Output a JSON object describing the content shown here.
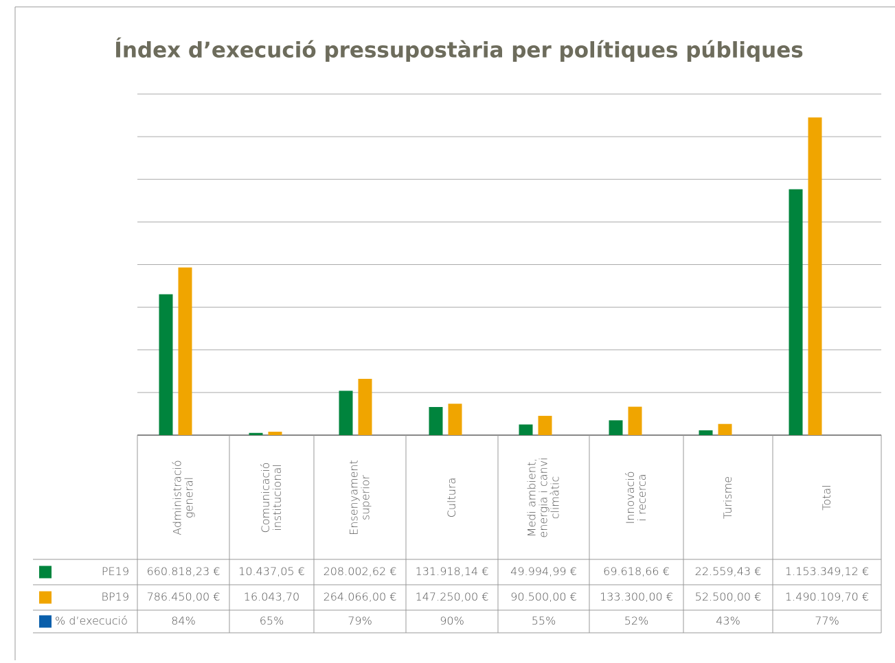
{
  "chart_data": {
    "type": "bar",
    "title": "Índex d’execució pressupostària per polítiques públiques",
    "categories": [
      [
        "Administració",
        "general"
      ],
      [
        "Comunicació",
        "institucional"
      ],
      [
        "Ensenyament",
        "superior"
      ],
      [
        "Cultura"
      ],
      [
        "Medi ambient,",
        "energia i canvi",
        "climàtic"
      ],
      [
        "Innovació",
        "i recerca"
      ],
      [
        "Turisme"
      ],
      [
        "Total"
      ]
    ],
    "series": [
      {
        "name": "PE19",
        "color": "#00843d",
        "values": [
          660818.23,
          10437.05,
          208002.62,
          131918.14,
          49994.99,
          69618.66,
          22559.43,
          1153349.12
        ],
        "value_labels": [
          "660.818,23 €",
          "10.437,05 €",
          "208.002,62 €",
          "131.918,14 €",
          "49.994,99 €",
          "69.618,66 €",
          "22.559,43 €",
          "1.153.349,12 €"
        ]
      },
      {
        "name": "BP19",
        "color": "#f0a500",
        "values": [
          786450.0,
          16043.7,
          264066.0,
          147250.0,
          90500.0,
          133300.0,
          52500.0,
          1490109.7
        ],
        "value_labels": [
          "786.450,00 €",
          "16.043,70",
          "264.066,00 €",
          "147.250,00 €",
          "90.500,00 €",
          "133.300,00 €",
          "52.500,00 €",
          "1.490.109,70 €"
        ]
      }
    ],
    "execution": {
      "name": "% d’execució",
      "color": "#0a5fab",
      "values": [
        84,
        65,
        79,
        90,
        55,
        52,
        43,
        77
      ],
      "value_labels": [
        "84%",
        "65%",
        "79%",
        "90%",
        "55%",
        "52%",
        "43%",
        "77%"
      ]
    },
    "ylim": [
      0,
      1600000
    ],
    "yticks": [
      0,
      200000,
      400000,
      600000,
      800000,
      1000000,
      1200000,
      1400000,
      1600000
    ],
    "grid": true
  }
}
